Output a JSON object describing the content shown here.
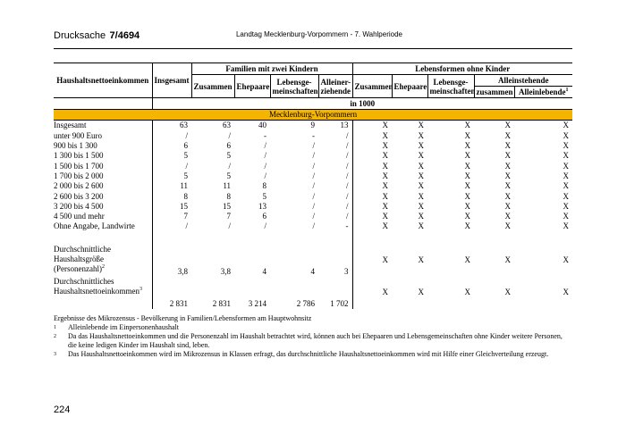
{
  "header": {
    "doc_label": "Drucksache",
    "doc_number": "7/4694",
    "title": "Landtag Mecklenburg-Vorpommern - 7. Wahlperiode"
  },
  "table": {
    "row_header": "Haushaltsnettoeinkommen",
    "col_total": "Insgesamt",
    "group1": "Familien mit zwei Kindern",
    "group1_cols": [
      "Zusammen",
      "Ehepaare",
      "Lebensge-meinschaften",
      "Alleiner-ziehende"
    ],
    "group2": "Lebensformen ohne Kinder",
    "group2_cols": [
      "Zusammen",
      "Ehepaare",
      "Lebensge-meinschaften"
    ],
    "subgroup": "Alleinstehende",
    "subgroup_cols": [
      "zusammen",
      "Alleinlebende"
    ],
    "subgroup_sup": "1",
    "unit": "in 1000",
    "region": "Mecklenburg-Vorpommern",
    "rows": [
      {
        "label": "Insgesamt",
        "values": [
          "63",
          "63",
          "40",
          "9",
          "13",
          "X",
          "X",
          "X",
          "X",
          "X"
        ]
      },
      {
        "label": "unter 900 Euro",
        "values": [
          "/",
          "/",
          "-",
          "-",
          "/",
          "X",
          "X",
          "X",
          "X",
          "X"
        ]
      },
      {
        "label": "900 bis 1 300",
        "values": [
          "6",
          "6",
          "/",
          "/",
          "/",
          "X",
          "X",
          "X",
          "X",
          "X"
        ]
      },
      {
        "label": "1 300 bis 1 500",
        "values": [
          "5",
          "5",
          "/",
          "/",
          "/",
          "X",
          "X",
          "X",
          "X",
          "X"
        ]
      },
      {
        "label": "1 500 bis 1 700",
        "values": [
          "/",
          "/",
          "/",
          "/",
          "/",
          "X",
          "X",
          "X",
          "X",
          "X"
        ]
      },
      {
        "label": "1 700 bis 2 000",
        "values": [
          "5",
          "5",
          "/",
          "/",
          "/",
          "X",
          "X",
          "X",
          "X",
          "X"
        ]
      },
      {
        "label": "2 000 bis 2 600",
        "values": [
          "11",
          "11",
          "8",
          "/",
          "/",
          "X",
          "X",
          "X",
          "X",
          "X"
        ]
      },
      {
        "label": "2 600 bis 3 200",
        "values": [
          "8",
          "8",
          "5",
          "/",
          "/",
          "X",
          "X",
          "X",
          "X",
          "X"
        ]
      },
      {
        "label": "3 200 bis 4 500",
        "values": [
          "15",
          "15",
          "13",
          "/",
          "/",
          "X",
          "X",
          "X",
          "X",
          "X"
        ]
      },
      {
        "label": "4 500 und mehr",
        "values": [
          "7",
          "7",
          "6",
          "/",
          "/",
          "X",
          "X",
          "X",
          "X",
          "X"
        ]
      },
      {
        "label": "Ohne Angabe, Landwirte",
        "values": [
          "/",
          "/",
          "/",
          "/",
          "-",
          "X",
          "X",
          "X",
          "X",
          "X"
        ]
      }
    ],
    "average_rows": [
      {
        "label_lines": [
          "Durchschnittliche",
          "Haushaltsgröße",
          "(Personenzahl)"
        ],
        "sup": "2",
        "values": [
          "3,8",
          "3,8",
          "4",
          "4",
          "3",
          "X",
          "X",
          "X",
          "X",
          "X"
        ]
      },
      {
        "label_lines": [
          "Durchschnittliches",
          "Haushaltsnettoeinkommen"
        ],
        "sup": "3",
        "values": [
          "2 831",
          "2 831",
          "3 214",
          "2 786",
          "1 702",
          "X",
          "X",
          "X",
          "X",
          "X"
        ]
      }
    ]
  },
  "footnotes": {
    "intro": "Ergebnisse des Mikrozensus - Bevölkerung in Familien/Lebensformen am Hauptwohnsitz",
    "notes": [
      {
        "mark": "1",
        "text": "Alleinlebende im Einpersonenhaushalt"
      },
      {
        "mark": "2",
        "text": "Da das Haushaltsnettoeinkommen und die Personenzahl im Haushalt betrachtet wird, können auch bei Ehepaaren und Lebensgemeinschaften ohne Kinder weitere Personen, die keine ledigen Kinder im Haushalt sind, leben."
      },
      {
        "mark": "3",
        "text": "Das Haushaltsnettoeinkommen wird im Mikrozensus in Klassen erfragt, das durchschnittliche Haushaltsnettoeinkommen wird mit Hilfe einer Gleichverteilung erzeugt."
      }
    ]
  },
  "page_number": "224"
}
